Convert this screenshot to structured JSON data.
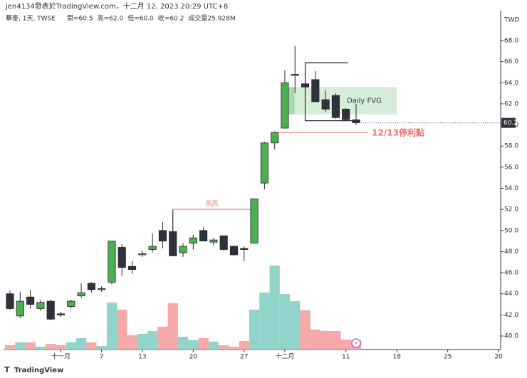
{
  "chart_data": {
    "type": "candlestick",
    "attribution": "jen4134發表於TradingView.com，十二月 12, 2023 20:29 UTC+8",
    "symbol": "華泰, 1天, TWSE",
    "ohlc_labels": [
      "開=60.5",
      "高=62.0",
      "低=60.0",
      "收=60.2",
      "成交量25.928M"
    ],
    "currency": "TWD",
    "brand": "TradingView",
    "open": [
      44.0,
      41.9,
      43.7,
      42.6,
      43.3,
      42.1,
      42.8,
      43.8,
      45.0,
      44.4,
      45.1,
      48.4,
      46.6,
      47.7,
      48.2,
      50.0,
      49.9,
      47.9,
      48.8,
      50.0,
      48.9,
      49.5,
      48.5,
      48.3,
      48.8,
      54.5,
      58.3,
      59.7,
      64.8,
      63.9,
      64.3,
      62.4,
      62.8,
      61.5,
      60.5
    ],
    "high": [
      44.3,
      44.2,
      44.4,
      43.4,
      43.4,
      42.3,
      43.4,
      45.0,
      45.1,
      44.7,
      49.0,
      48.7,
      47.1,
      48.1,
      49.7,
      50.8,
      52.0,
      48.8,
      49.6,
      50.3,
      49.3,
      49.5,
      48.6,
      48.5,
      53.0,
      58.4,
      59.4,
      65.2,
      67.5,
      65.0,
      65.1,
      63.3,
      63.0,
      61.6,
      62.0
    ],
    "low": [
      42.5,
      41.7,
      42.6,
      42.4,
      41.5,
      41.8,
      42.6,
      43.6,
      44.1,
      44.2,
      44.9,
      45.7,
      45.9,
      47.5,
      47.9,
      48.3,
      47.6,
      47.5,
      48.2,
      49.0,
      48.6,
      48.1,
      47.6,
      47.1,
      48.8,
      53.9,
      57.7,
      59.7,
      63.0,
      63.6,
      62.2,
      61.2,
      60.6,
      60.4,
      60.0
    ],
    "close": [
      42.6,
      43.3,
      43.0,
      43.2,
      41.6,
      42.0,
      43.3,
      44.1,
      44.4,
      44.5,
      49.0,
      46.5,
      46.3,
      47.8,
      48.5,
      49.0,
      47.6,
      48.5,
      49.3,
      49.0,
      49.1,
      48.2,
      47.7,
      48.2,
      53.0,
      58.3,
      59.3,
      64.0,
      64.8,
      63.6,
      62.2,
      61.5,
      60.7,
      60.5,
      60.2
    ],
    "volume": [
      12,
      20,
      20,
      8,
      16,
      12,
      20,
      32,
      20,
      10,
      132,
      112,
      40,
      44,
      52,
      64,
      130,
      36,
      26,
      32,
      22,
      12,
      8,
      24,
      112,
      160,
      236,
      156,
      136,
      110,
      56,
      52,
      52,
      28,
      25.928
    ],
    "up_color": "#4caf50",
    "down_color": "#2f323e",
    "up_volume_color": "#92d3cc",
    "down_volume_color": "#f5a9a9",
    "xlim": [
      -0.63,
      48.2
    ],
    "xticks": [
      {
        "value": 5,
        "label": "十一月"
      },
      {
        "value": 9,
        "label": "7"
      },
      {
        "value": 13,
        "label": "13"
      },
      {
        "value": 18,
        "label": "20"
      },
      {
        "value": 23,
        "label": "27"
      },
      {
        "value": 27,
        "label": "十二月"
      },
      {
        "value": 33,
        "label": "11"
      },
      {
        "value": 38,
        "label": "18"
      },
      {
        "value": 43,
        "label": "25"
      },
      {
        "value": 48,
        "label": "20"
      }
    ],
    "ylim": [
      38.72,
      69.82
    ],
    "yticks": [
      {
        "value": 40,
        "label": "40.0"
      },
      {
        "value": 42,
        "label": "42.0"
      },
      {
        "value": 44,
        "label": "44.0"
      },
      {
        "value": 46,
        "label": "46.0"
      },
      {
        "value": 48,
        "label": "48.0"
      },
      {
        "value": 50,
        "label": "50.0"
      },
      {
        "value": 52,
        "label": "52.0"
      },
      {
        "value": 54,
        "label": "54.0"
      },
      {
        "value": 56,
        "label": "56.0"
      },
      {
        "value": 58,
        "label": "58.0"
      },
      {
        "value": 60,
        "label": "60.0"
      },
      {
        "value": 62,
        "label": "62.0"
      },
      {
        "value": 64,
        "label": "64.0"
      },
      {
        "value": 66,
        "label": "66.0"
      },
      {
        "value": 68,
        "label": "68.0"
      }
    ],
    "vlim": [
      0,
      922
    ],
    "annotations": [
      {
        "text": "前高",
        "price": 52.0,
        "from": 16,
        "to": 23.65,
        "drop": 49.9,
        "color": "#f08080"
      },
      {
        "text": "12/13停利點",
        "price": 59.3,
        "from": 26.4,
        "to": 35.2,
        "color": "#f07070"
      }
    ],
    "zone": {
      "text": "Daily FVG",
      "top": 63.6,
      "bottom": 61.0,
      "from": 27.4,
      "to": 38.0,
      "color": "#d6eed8"
    },
    "bracket": {
      "top": 65.9,
      "bottom": 60.4,
      "from": 29,
      "to_top": 33.2,
      "to_bottom": 34.4
    }
  }
}
